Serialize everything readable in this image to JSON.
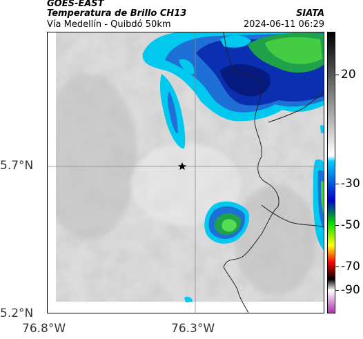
{
  "header": {
    "satellite": "GOES-EAST",
    "product": "Temperatura de Brillo CH13",
    "route": "Vía Medellín - Quibdó 50km",
    "agency": "SIATA",
    "datetime": "2024-06-11 06:29"
  },
  "axes": {
    "lat_labels": [
      "5.7°N",
      "5.2°N"
    ],
    "lon_labels": [
      "76.8°W",
      "76.3°W"
    ]
  },
  "colorbar": {
    "labels": [
      "20",
      "-30",
      "-50",
      "-70",
      "-90"
    ],
    "colors": [
      "#000000",
      "#ffffff",
      "#00ccff",
      "#0000cc",
      "#00dd00",
      "#ffff00",
      "#ff0000",
      "#000000",
      "#ffffff",
      "#aa33aa"
    ]
  },
  "marker": {
    "icon": "star-icon"
  }
}
